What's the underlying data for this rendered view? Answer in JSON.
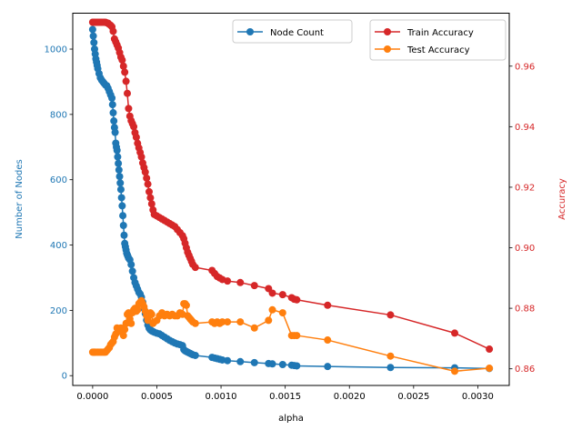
{
  "chart_data": {
    "type": "line",
    "xlabel": "alpha",
    "ylabel_left": "Number of Nodes",
    "ylabel_right": "Accuracy",
    "xlim": [
      -0.000155,
      0.003245
    ],
    "ylim_left": [
      -30,
      1110
    ],
    "ylim_right": [
      0.8545,
      0.9775
    ],
    "x_ticks": [
      0,
      0.0005,
      0.001,
      0.0015,
      0.002,
      0.0025,
      0.003
    ],
    "x_tick_labels": [
      "0.0000",
      "0.0005",
      "0.0010",
      "0.0015",
      "0.0020",
      "0.0025",
      "0.0030"
    ],
    "y_left_ticks": [
      0,
      200,
      400,
      600,
      800,
      1000
    ],
    "y_left_tick_labels": [
      "0",
      "200",
      "400",
      "600",
      "800",
      "1000"
    ],
    "y_right_ticks": [
      0.86,
      0.88,
      0.9,
      0.92,
      0.94,
      0.96
    ],
    "y_right_tick_labels": [
      "0.86",
      "0.88",
      "0.90",
      "0.92",
      "0.94",
      "0.96"
    ],
    "colors": {
      "node_count": "#1f77b4",
      "train": "#d62728",
      "test": "#ff7f0e",
      "left_axis": "#1f77b4",
      "right_axis": "#d62728"
    },
    "legend_left": {
      "placement": "top-center",
      "entries": [
        "Node Count"
      ]
    },
    "legend_right": {
      "placement": "top-right",
      "entries": [
        "Train Accuracy",
        "Test Accuracy"
      ]
    },
    "series": [
      {
        "name": "Node Count",
        "axis": "left",
        "color": "#1f77b4",
        "x": [
          0,
          5e-06,
          1e-05,
          1.5e-05,
          2e-05,
          2.5e-05,
          3e-05,
          3.5e-05,
          4e-05,
          5e-05,
          6e-05,
          7e-05,
          8e-05,
          9e-05,
          0.0001,
          0.00011,
          0.00012,
          0.00013,
          0.00014,
          0.00015,
          0.000155,
          0.00016,
          0.000165,
          0.00017,
          0.000175,
          0.00018,
          0.000185,
          0.00019,
          0.000195,
          0.0002,
          0.000205,
          0.00021,
          0.000215,
          0.00022,
          0.000225,
          0.00023,
          0.000235,
          0.00024,
          0.000245,
          0.00025,
          0.000255,
          0.00026,
          0.000265,
          0.00027,
          0.000275,
          0.00028,
          0.00029,
          0.0003,
          0.00031,
          0.00032,
          0.00033,
          0.00034,
          0.00035,
          0.00036,
          0.00037,
          0.00038,
          0.00039,
          0.0004,
          0.00041,
          0.00042,
          0.00043,
          0.00044,
          0.00045,
          0.00046,
          0.00047,
          0.00048,
          0.0005,
          0.00052,
          0.00054,
          0.00056,
          0.00058,
          0.0006,
          0.00062,
          0.00064,
          0.00066,
          0.00068,
          0.0007,
          0.00071,
          0.00072,
          0.00073,
          0.00074,
          0.00075,
          0.00076,
          0.00077,
          0.00078,
          0.0008,
          0.00093,
          0.00095,
          0.00097,
          0.00099,
          0.00101,
          0.00105,
          0.00115,
          0.00126,
          0.00137,
          0.0014,
          0.00148,
          0.00155,
          0.00157,
          0.00159,
          0.00183,
          0.00232,
          0.00282,
          0.00309
        ],
        "values": [
          1060,
          1040,
          1020,
          1000,
          985,
          970,
          960,
          950,
          940,
          925,
          912,
          905,
          900,
          895,
          890,
          888,
          880,
          870,
          860,
          850,
          830,
          805,
          780,
          760,
          745,
          712,
          700,
          690,
          670,
          650,
          630,
          610,
          590,
          570,
          545,
          520,
          490,
          460,
          430,
          405,
          395,
          385,
          375,
          370,
          365,
          360,
          355,
          340,
          320,
          300,
          285,
          275,
          265,
          255,
          250,
          240,
          225,
          205,
          190,
          170,
          155,
          145,
          140,
          137,
          135,
          133,
          130,
          128,
          123,
          118,
          113,
          108,
          104,
          100,
          97,
          95,
          92,
          80,
          76,
          74,
          72,
          70,
          68,
          66,
          64,
          62,
          56,
          54,
          52,
          50,
          48,
          46,
          43,
          40,
          37,
          36,
          34,
          32,
          31,
          30,
          28,
          25,
          24,
          22
        ]
      },
      {
        "name": "Train Accuracy",
        "axis": "right",
        "color": "#d62728",
        "x": [
          0,
          5e-06,
          1e-05,
          1.5e-05,
          2e-05,
          3e-05,
          4e-05,
          5e-05,
          6e-05,
          7e-05,
          8e-05,
          9e-05,
          0.0001,
          0.00011,
          0.00012,
          0.00013,
          0.00014,
          0.00015,
          0.00016,
          0.00017,
          0.00018,
          0.00019,
          0.0002,
          0.00021,
          0.00022,
          0.00023,
          0.00024,
          0.00025,
          0.00026,
          0.00027,
          0.00028,
          0.00029,
          0.0003,
          0.00031,
          0.00032,
          0.00033,
          0.00034,
          0.00035,
          0.00036,
          0.00037,
          0.00038,
          0.00039,
          0.0004,
          0.00041,
          0.00042,
          0.00043,
          0.00044,
          0.00045,
          0.00046,
          0.00047,
          0.00048,
          0.0005,
          0.00052,
          0.00054,
          0.00056,
          0.00058,
          0.0006,
          0.00062,
          0.00064,
          0.00066,
          0.00068,
          0.0007,
          0.00071,
          0.00072,
          0.00073,
          0.00074,
          0.00075,
          0.00076,
          0.00077,
          0.00078,
          0.0008,
          0.00093,
          0.00095,
          0.00097,
          0.00099,
          0.00101,
          0.00105,
          0.00115,
          0.00126,
          0.00137,
          0.0014,
          0.00148,
          0.00155,
          0.00157,
          0.00159,
          0.00183,
          0.00232,
          0.00282,
          0.00309
        ],
        "values": [
          0.9745,
          0.9745,
          0.9745,
          0.9745,
          0.9745,
          0.9745,
          0.9745,
          0.9745,
          0.9745,
          0.9745,
          0.9745,
          0.9745,
          0.9745,
          0.9743,
          0.9742,
          0.9738,
          0.9735,
          0.973,
          0.9715,
          0.969,
          0.968,
          0.967,
          0.966,
          0.9645,
          0.963,
          0.962,
          0.96,
          0.958,
          0.955,
          0.951,
          0.946,
          0.9435,
          0.942,
          0.941,
          0.94,
          0.938,
          0.9365,
          0.9345,
          0.933,
          0.9315,
          0.93,
          0.928,
          0.9265,
          0.925,
          0.923,
          0.921,
          0.9185,
          0.9165,
          0.9145,
          0.9125,
          0.911,
          0.9105,
          0.91,
          0.9095,
          0.909,
          0.9085,
          0.908,
          0.9075,
          0.907,
          0.906,
          0.905,
          0.904,
          0.903,
          0.9015,
          0.9,
          0.8985,
          0.8975,
          0.8965,
          0.8955,
          0.8945,
          0.8935,
          0.8925,
          0.8915,
          0.8905,
          0.89,
          0.8895,
          0.889,
          0.8885,
          0.8875,
          0.8865,
          0.885,
          0.8845,
          0.8835,
          0.883,
          0.8828,
          0.881,
          0.8778,
          0.8718,
          0.8665
        ]
      },
      {
        "name": "Test Accuracy",
        "axis": "right",
        "color": "#ff7f0e",
        "x": [
          0,
          5e-06,
          1e-05,
          1.5e-05,
          2e-05,
          3e-05,
          4e-05,
          5e-05,
          6e-05,
          7e-05,
          8e-05,
          9e-05,
          0.0001,
          0.00011,
          0.00012,
          0.00013,
          0.00014,
          0.00015,
          0.00016,
          0.00017,
          0.00018,
          0.00019,
          0.0002,
          0.00021,
          0.00022,
          0.00023,
          0.00024,
          0.00025,
          0.00026,
          0.00027,
          0.00028,
          0.00029,
          0.0003,
          0.00031,
          0.00032,
          0.00033,
          0.00034,
          0.00035,
          0.00036,
          0.00037,
          0.00038,
          0.00039,
          0.0004,
          0.00041,
          0.00042,
          0.00043,
          0.00044,
          0.00045,
          0.00046,
          0.00047,
          0.00048,
          0.0005,
          0.00052,
          0.00054,
          0.00056,
          0.00058,
          0.0006,
          0.00062,
          0.00064,
          0.00066,
          0.00068,
          0.0007,
          0.00071,
          0.00072,
          0.00073,
          0.00074,
          0.00075,
          0.00076,
          0.00077,
          0.00078,
          0.0008,
          0.00093,
          0.00095,
          0.00097,
          0.00099,
          0.00101,
          0.00105,
          0.00115,
          0.00126,
          0.00137,
          0.0014,
          0.00148,
          0.00155,
          0.00157,
          0.00159,
          0.00183,
          0.00232,
          0.00282,
          0.00309
        ],
        "values": [
          0.8655,
          0.8655,
          0.8655,
          0.8655,
          0.8655,
          0.8655,
          0.8655,
          0.8655,
          0.8655,
          0.8655,
          0.8655,
          0.8655,
          0.8655,
          0.866,
          0.8665,
          0.867,
          0.868,
          0.8685,
          0.869,
          0.8705,
          0.8715,
          0.8735,
          0.873,
          0.8725,
          0.8735,
          0.872,
          0.871,
          0.873,
          0.875,
          0.878,
          0.8785,
          0.8765,
          0.875,
          0.8785,
          0.8795,
          0.88,
          0.879,
          0.8795,
          0.8815,
          0.882,
          0.8825,
          0.8815,
          0.8805,
          0.879,
          0.8775,
          0.876,
          0.8775,
          0.8785,
          0.878,
          0.875,
          0.8755,
          0.876,
          0.8775,
          0.8785,
          0.8775,
          0.878,
          0.8775,
          0.878,
          0.8775,
          0.8775,
          0.8785,
          0.878,
          0.8815,
          0.8815,
          0.881,
          0.8775,
          0.877,
          0.8765,
          0.876,
          0.8755,
          0.875,
          0.8755,
          0.875,
          0.8755,
          0.875,
          0.8755,
          0.8755,
          0.8755,
          0.8735,
          0.876,
          0.8795,
          0.8785,
          0.871,
          0.871,
          0.871,
          0.8695,
          0.8642,
          0.8592,
          0.8602
        ]
      }
    ]
  }
}
